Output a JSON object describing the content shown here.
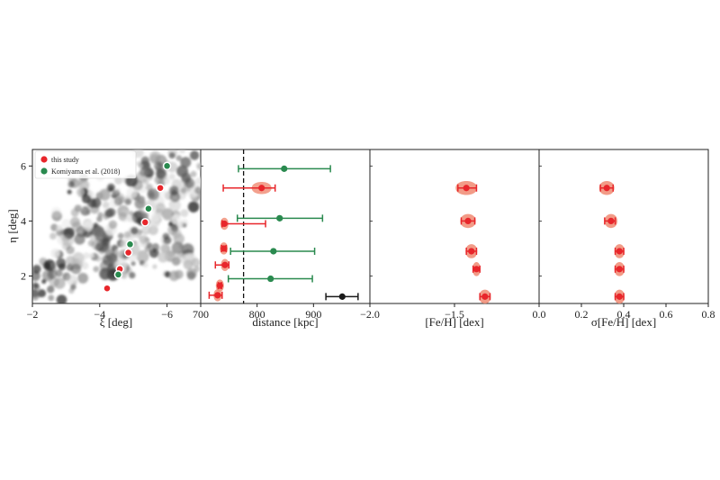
{
  "chart_data": [
    {
      "type": "scatter",
      "panel": "map",
      "xlabel": "ξ [deg]",
      "ylabel": "η [deg]",
      "xlim": [
        -2,
        -7
      ],
      "ylim": [
        1,
        6.6
      ],
      "xticks": [
        -2,
        -4,
        -6
      ],
      "xticklabels": [
        "−2",
        "−4",
        "−6"
      ],
      "yticks": [
        2,
        4,
        6
      ],
      "yticklabels": [
        "2",
        "4",
        "6"
      ],
      "legend": {
        "placement": "top-left",
        "entries": [
          {
            "label": "this study",
            "color": "#e8262b"
          },
          {
            "label": "Komiyama et al. (2018)",
            "color": "#2a8a4f"
          }
        ]
      },
      "series": [
        {
          "name": "this study",
          "color": "#e8262b",
          "points": [
            [
              -4.22,
              1.55
            ],
            [
              -4.6,
              2.25
            ],
            [
              -4.85,
              2.85
            ],
            [
              -5.35,
              3.95
            ],
            [
              -5.8,
              5.2
            ]
          ]
        },
        {
          "name": "Komiyama et al. (2018)",
          "color": "#2a8a4f",
          "points": [
            [
              -4.55,
              2.05
            ],
            [
              -4.9,
              3.15
            ],
            [
              -5.45,
              4.45
            ],
            [
              -6.0,
              6.0
            ]
          ]
        }
      ]
    },
    {
      "type": "scatter",
      "panel": "distance",
      "xlabel": "distance [kpc]",
      "xlim": [
        700,
        1000
      ],
      "ylim": [
        1,
        6.6
      ],
      "xticks": [
        700,
        800,
        900
      ],
      "xticklabels": [
        "700",
        "800",
        "900"
      ],
      "reference_line": 776,
      "series": [
        {
          "name": "this study",
          "color": "#e8262b",
          "points": [
            {
              "y": 1.3,
              "x": 730,
              "lo": 715,
              "hi": 738
            },
            {
              "y": 1.65,
              "x": 734,
              "lo": 731,
              "hi": 737
            },
            {
              "y": 2.4,
              "x": 743,
              "lo": 726,
              "hi": 750
            },
            {
              "y": 3.0,
              "x": 741,
              "lo": 737,
              "hi": 745
            },
            {
              "y": 3.9,
              "x": 742,
              "lo": 738,
              "hi": 815
            },
            {
              "y": 5.2,
              "x": 808,
              "lo": 740,
              "hi": 832
            }
          ]
        },
        {
          "name": "Komiyama et al. (2018)",
          "color": "#2a8a4f",
          "points": [
            {
              "y": 1.9,
              "x": 824,
              "lo": 749,
              "hi": 898
            },
            {
              "y": 2.9,
              "x": 829,
              "lo": 753,
              "hi": 902
            },
            {
              "y": 4.1,
              "x": 840,
              "lo": 765,
              "hi": 916
            },
            {
              "y": 5.9,
              "x": 848,
              "lo": 767,
              "hi": 930
            }
          ]
        },
        {
          "name": "",
          "color": "#1a1a1a",
          "points": [
            {
              "y": 1.25,
              "x": 951,
              "lo": 922,
              "hi": 979
            }
          ]
        }
      ]
    },
    {
      "type": "scatter",
      "panel": "feh",
      "xlabel": "[Fe/H] [dex]",
      "xlim": [
        -2.0,
        -1.0
      ],
      "ylim": [
        1,
        6.6
      ],
      "xticks": [
        -2.0,
        -1.5
      ],
      "xticklabels": [
        "−2.0",
        "−1.5"
      ],
      "color": "#e8262b",
      "violin_color": "#f08a72",
      "points": [
        {
          "y": 1.25,
          "x": -1.32,
          "lo": -1.35,
          "hi": -1.29
        },
        {
          "y": 2.25,
          "x": -1.37,
          "lo": -1.39,
          "hi": -1.35
        },
        {
          "y": 2.9,
          "x": -1.4,
          "lo": -1.43,
          "hi": -1.37
        },
        {
          "y": 4.0,
          "x": -1.42,
          "lo": -1.46,
          "hi": -1.38
        },
        {
          "y": 5.2,
          "x": -1.43,
          "lo": -1.48,
          "hi": -1.37
        }
      ]
    },
    {
      "type": "scatter",
      "panel": "sigma_feh",
      "xlabel": "σ[Fe/H] [dex]",
      "xlim": [
        0.0,
        0.8
      ],
      "ylim": [
        1,
        6.6
      ],
      "xticks": [
        0.0,
        0.2,
        0.4,
        0.6,
        0.8
      ],
      "xticklabels": [
        "0.0",
        "0.2",
        "0.4",
        "0.6",
        "0.8"
      ],
      "color": "#e8262b",
      "violin_color": "#f08a72",
      "points": [
        {
          "y": 1.25,
          "x": 0.38,
          "lo": 0.36,
          "hi": 0.4
        },
        {
          "y": 2.25,
          "x": 0.38,
          "lo": 0.36,
          "hi": 0.4
        },
        {
          "y": 2.9,
          "x": 0.38,
          "lo": 0.36,
          "hi": 0.4
        },
        {
          "y": 4.0,
          "x": 0.34,
          "lo": 0.31,
          "hi": 0.36
        },
        {
          "y": 5.2,
          "x": 0.32,
          "lo": 0.29,
          "hi": 0.35
        }
      ]
    }
  ]
}
